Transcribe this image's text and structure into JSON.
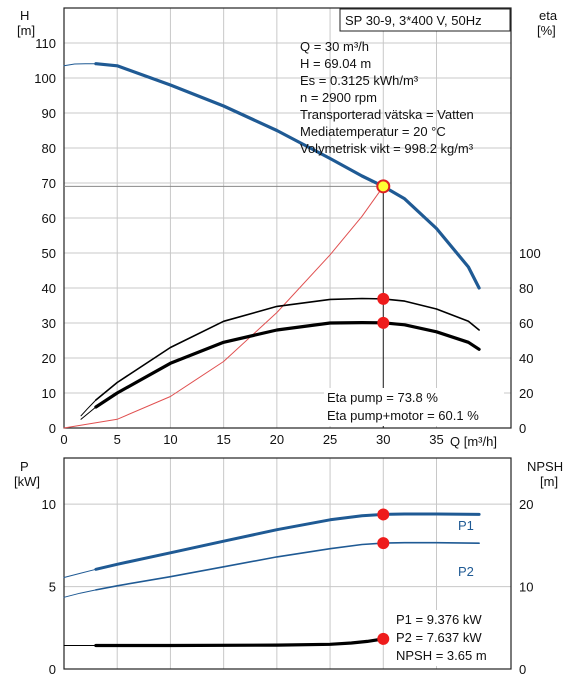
{
  "title": "SP 30-9, 3*400 V, 50Hz",
  "colors": {
    "curve_blue": "#1f5a94",
    "efficiency_black": "#000000",
    "system_red": "#e05050",
    "marker_red": "#ee1c1c",
    "marker_yellow": "#ffff33",
    "grid": "#c8c8c8"
  },
  "top_panel": {
    "y_left_label": [
      "H",
      "[m]"
    ],
    "y_right_label": [
      "eta",
      "[%]"
    ],
    "x_label": "Q [m³/h]",
    "info": [
      "Q = 30 m³/h",
      "H = 69.04 m",
      "Es = 0.3125 kWh/m³",
      "n = 2900 rpm",
      "Transporterad vätska = Vatten",
      "Mediatemperatur = 20 °C",
      "Volymetrisk vikt = 998.2 kg/m³"
    ],
    "eta_info": [
      "Eta pump = 73.8 %",
      "Eta pump+motor = 60.1 %"
    ]
  },
  "bottom_panel": {
    "y_left_label": [
      "P",
      "[kW]"
    ],
    "y_right_label": [
      "NPSH",
      "[m]"
    ],
    "info": [
      "P1 = 9.376 kW",
      "P2 = 7.637 kW",
      "NPSH = 3.65 m"
    ]
  },
  "chart_data": [
    {
      "type": "line",
      "title": "SP 30-9, 3*400 V, 50Hz",
      "xlabel": "Q [m³/h]",
      "ylabel": "H [m]",
      "y2label": "eta [%]",
      "xlim": [
        0,
        42
      ],
      "ylim": [
        0,
        120
      ],
      "y2lim": [
        0,
        240
      ],
      "xticks": [
        0,
        5,
        10,
        15,
        20,
        25,
        30,
        35
      ],
      "yticks": [
        0,
        10,
        20,
        30,
        40,
        50,
        60,
        70,
        80,
        90,
        100,
        110
      ],
      "y2ticks": [
        0,
        20,
        40,
        60,
        80,
        100
      ],
      "series": [
        {
          "id": "head_ext",
          "axis": "left",
          "x": [
            0,
            1,
            2,
            3
          ],
          "y": [
            103.5,
            104,
            104.1,
            104.1
          ]
        },
        {
          "id": "head",
          "axis": "left",
          "x": [
            3,
            5,
            10,
            15,
            20,
            25,
            28,
            30,
            32,
            35,
            38,
            39
          ],
          "y": [
            104.1,
            103.5,
            98,
            92,
            85,
            77,
            72,
            69.04,
            65.5,
            57,
            46,
            40
          ]
        },
        {
          "id": "system",
          "axis": "left",
          "x": [
            0,
            5,
            10,
            15,
            20,
            25,
            28,
            30
          ],
          "y": [
            0,
            2.5,
            9,
            19,
            33,
            49.5,
            60.5,
            69.04
          ]
        },
        {
          "id": "eta_pump",
          "axis": "right",
          "x": [
            3,
            5,
            10,
            15,
            20,
            25,
            28,
            30,
            32,
            35,
            38,
            39
          ],
          "y": [
            16,
            26,
            46,
            61,
            69.5,
            73.5,
            74,
            73.8,
            72.5,
            68,
            61,
            56
          ]
        },
        {
          "id": "eta_pump_ext",
          "axis": "right",
          "x": [
            1.6,
            2.2,
            3
          ],
          "y": [
            7,
            11,
            16
          ]
        },
        {
          "id": "eta_motor",
          "axis": "right",
          "x": [
            3,
            5,
            10,
            15,
            20,
            25,
            28,
            30,
            32,
            35,
            38,
            39
          ],
          "y": [
            12,
            20,
            37,
            49,
            56,
            60,
            60.2,
            60.1,
            59,
            55,
            49,
            45
          ]
        },
        {
          "id": "eta_motor_ext",
          "axis": "right",
          "x": [
            1.6,
            2.2,
            3
          ],
          "y": [
            5,
            8,
            12
          ]
        }
      ],
      "markers": [
        {
          "axis": "left",
          "x": 30,
          "y": 69.04,
          "fill": "#ffff33"
        },
        {
          "axis": "right",
          "x": 30,
          "y": 73.8,
          "fill": "#ee1c1c"
        },
        {
          "axis": "right",
          "x": 30,
          "y": 60.1,
          "fill": "#ee1c1c"
        }
      ]
    },
    {
      "type": "line",
      "ylabel": "P [kW]",
      "y2label": "NPSH [m]",
      "xlim": [
        0,
        42
      ],
      "ylim": [
        0,
        12.8
      ],
      "y2lim": [
        0,
        25.6
      ],
      "xticks": [
        0,
        5,
        10,
        15,
        20,
        25,
        30,
        35
      ],
      "yticks": [
        0,
        5,
        10
      ],
      "y2ticks": [
        0,
        10,
        20
      ],
      "series": [
        {
          "id": "P1",
          "name": "P1",
          "axis": "left",
          "x": [
            3,
            5,
            10,
            15,
            20,
            25,
            28,
            30,
            32,
            35,
            39
          ],
          "y": [
            6.05,
            6.35,
            7.05,
            7.75,
            8.45,
            9.05,
            9.3,
            9.376,
            9.4,
            9.4,
            9.38
          ]
        },
        {
          "id": "P1_ext",
          "axis": "left",
          "x": [
            0,
            1.5,
            3
          ],
          "y": [
            5.55,
            5.8,
            6.05
          ]
        },
        {
          "id": "P2",
          "name": "P2",
          "axis": "left",
          "x": [
            3,
            5,
            10,
            15,
            20,
            25,
            28,
            30,
            32,
            35,
            39
          ],
          "y": [
            4.8,
            5.05,
            5.6,
            6.2,
            6.8,
            7.3,
            7.55,
            7.637,
            7.66,
            7.66,
            7.63
          ]
        },
        {
          "id": "P2_ext",
          "axis": "left",
          "x": [
            0,
            1.5,
            3
          ],
          "y": [
            4.35,
            4.6,
            4.8
          ]
        },
        {
          "id": "NPSH",
          "axis": "right",
          "x": [
            3,
            10,
            20,
            25,
            27,
            28.5,
            30
          ],
          "y": [
            2.85,
            2.85,
            2.9,
            3.0,
            3.15,
            3.35,
            3.65
          ]
        },
        {
          "id": "NPSH_ext",
          "axis": "right",
          "x": [
            0,
            3
          ],
          "y": [
            2.85,
            2.85
          ]
        }
      ],
      "markers": [
        {
          "axis": "left",
          "x": 30,
          "y": 9.376,
          "fill": "#ee1c1c"
        },
        {
          "axis": "left",
          "x": 30,
          "y": 7.637,
          "fill": "#ee1c1c"
        },
        {
          "axis": "right",
          "x": 30,
          "y": 3.65,
          "fill": "#ee1c1c"
        }
      ]
    }
  ]
}
